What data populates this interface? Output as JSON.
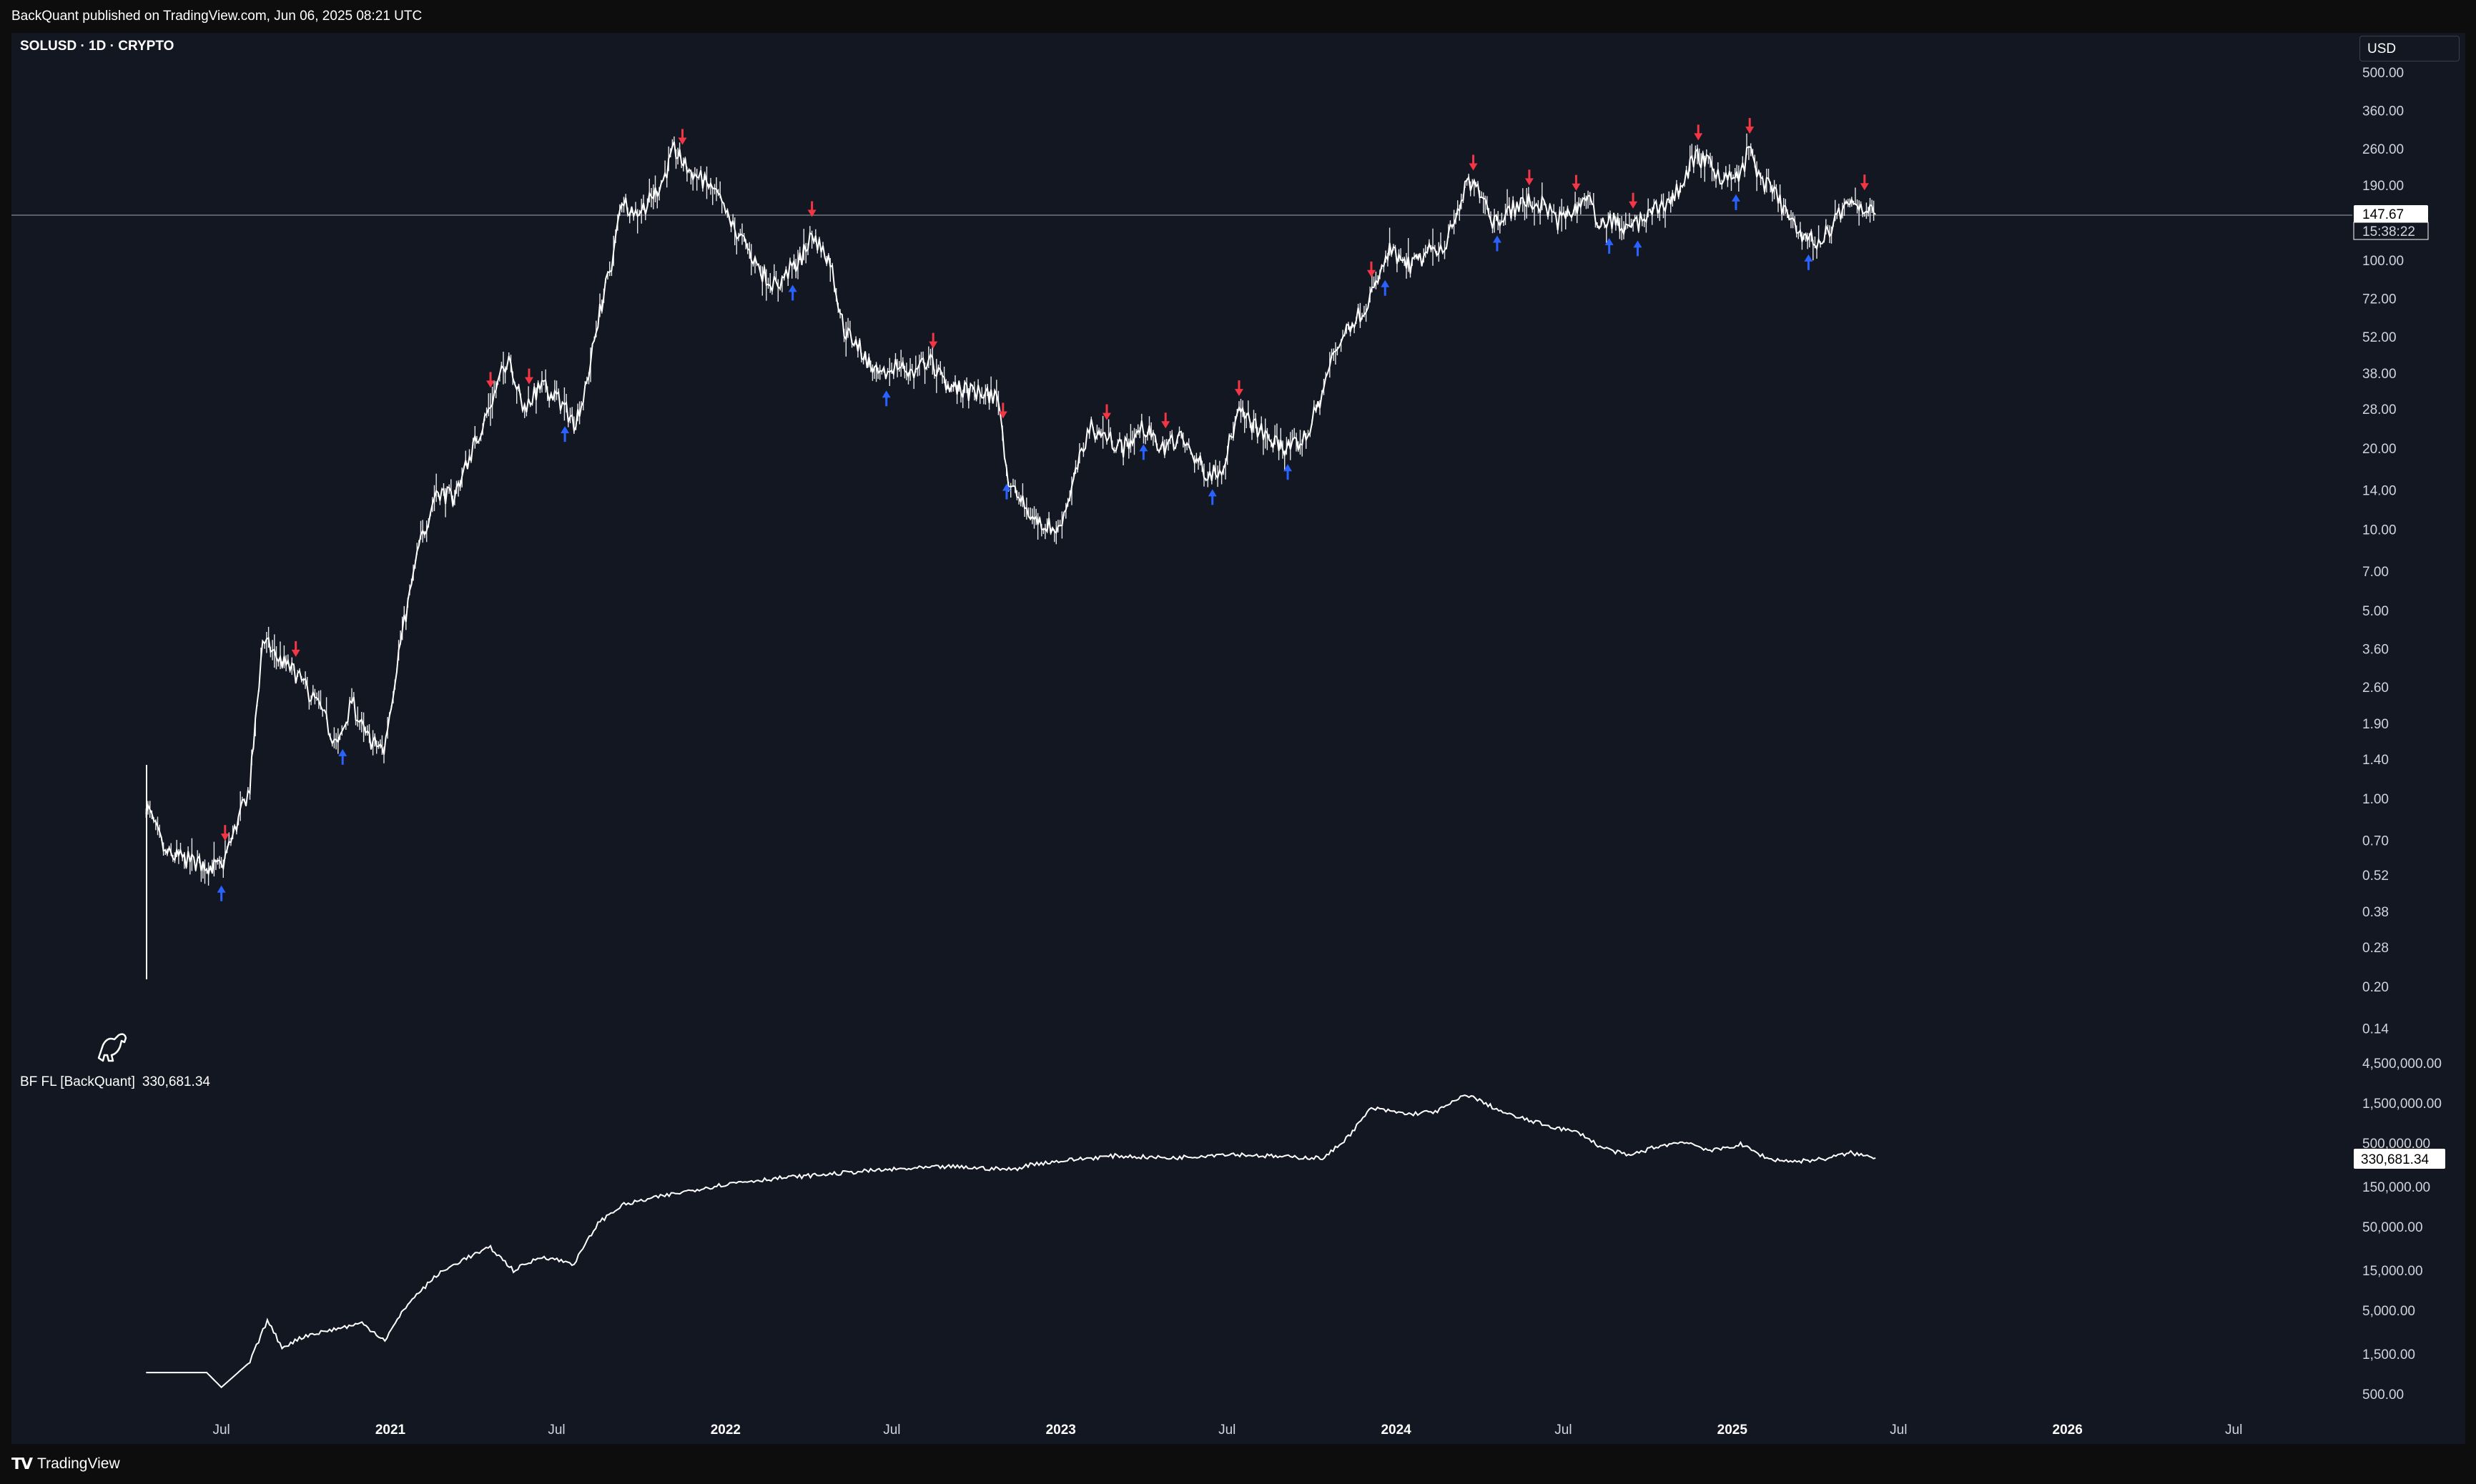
{
  "header": {
    "published": "BackQuant published on TradingView.com, Jun 06, 2025 08:21 UTC"
  },
  "symbol": {
    "title": "SOLUSD · 1D · CRYPTO"
  },
  "currency_button": {
    "label": "USD"
  },
  "indicator": {
    "name": "BF FL [BackQuant]",
    "value": "330,681.34"
  },
  "footer": {
    "brand": "TradingView"
  },
  "colors": {
    "background": "#131722",
    "price": "#ffffff",
    "buy": "#2962ff",
    "sell": "#f23645"
  },
  "chart_data": [
    {
      "type": "line",
      "title": "SOLUSD · 1D · CRYPTO",
      "scale": "log",
      "ylim": [
        0.12,
        500
      ],
      "y_ticks": [
        "500.00",
        "360.00",
        "260.00",
        "190.00",
        "140.00",
        "100.00",
        "72.00",
        "52.00",
        "38.00",
        "28.00",
        "20.00",
        "14.00",
        "10.00",
        "7.00",
        "5.00",
        "3.60",
        "2.60",
        "1.90",
        "1.40",
        "1.00",
        "0.70",
        "0.52",
        "0.38",
        "0.28",
        "0.20",
        "0.14"
      ],
      "x_ticks": [
        "Jul",
        "2021",
        "Jul",
        "2022",
        "Jul",
        "2023",
        "Jul",
        "2024",
        "Jul",
        "2025",
        "Jul",
        "2026",
        "Jul"
      ],
      "last_price": "147.67",
      "countdown": "15:38:22",
      "series": [
        {
          "x": [
            "2020-04-10",
            "2020-05-01",
            "2020-06-01",
            "2020-07-01",
            "2020-08-01",
            "2020-08-15",
            "2020-09-01",
            "2020-09-20",
            "2020-10-15",
            "2020-11-05",
            "2020-11-20",
            "2020-12-05",
            "2020-12-25",
            "2021-01-10",
            "2021-02-01",
            "2021-02-20",
            "2021-03-10",
            "2021-04-01",
            "2021-04-20",
            "2021-05-10",
            "2021-05-25",
            "2021-06-15",
            "2021-07-01",
            "2021-07-20",
            "2021-08-01",
            "2021-08-15",
            "2021-09-01",
            "2021-09-10",
            "2021-09-25",
            "2021-10-10",
            "2021-10-25",
            "2021-11-06",
            "2021-11-20",
            "2021-12-05",
            "2021-12-20",
            "2022-01-05",
            "2022-01-25",
            "2022-02-10",
            "2022-02-25",
            "2022-03-10",
            "2022-03-25",
            "2022-04-05",
            "2022-04-25",
            "2022-05-10",
            "2022-05-25",
            "2022-06-18",
            "2022-07-05",
            "2022-07-25",
            "2022-08-10",
            "2022-08-25",
            "2022-09-10",
            "2022-10-01",
            "2022-10-25",
            "2022-11-05",
            "2022-11-10",
            "2022-12-01",
            "2022-12-29",
            "2023-01-15",
            "2023-02-01",
            "2023-02-20",
            "2023-03-10",
            "2023-04-01",
            "2023-04-20",
            "2023-05-10",
            "2023-06-10",
            "2023-06-25",
            "2023-07-14",
            "2023-08-01",
            "2023-08-20",
            "2023-09-10",
            "2023-09-25",
            "2023-10-10",
            "2023-10-25",
            "2023-11-10",
            "2023-11-25",
            "2023-12-10",
            "2023-12-25",
            "2024-01-10",
            "2024-01-25",
            "2024-02-10",
            "2024-02-25",
            "2024-03-18",
            "2024-04-05",
            "2024-04-15",
            "2024-05-01",
            "2024-05-20",
            "2024-06-10",
            "2024-06-25",
            "2024-07-10",
            "2024-07-28",
            "2024-08-05",
            "2024-08-25",
            "2024-09-07",
            "2024-09-25",
            "2024-10-10",
            "2024-10-28",
            "2024-11-10",
            "2024-11-22",
            "2024-12-10",
            "2024-12-25",
            "2025-01-10",
            "2025-01-19",
            "2025-02-01",
            "2025-02-20",
            "2025-03-10",
            "2025-04-07",
            "2025-04-25",
            "2025-05-15",
            "2025-06-06"
          ],
          "y": [
            0.95,
            0.62,
            0.58,
            0.55,
            1.1,
            3.9,
            3.3,
            2.9,
            2.2,
            1.55,
            2.3,
            1.7,
            1.5,
            3.5,
            8.5,
            14,
            13,
            20,
            29,
            45,
            28,
            34,
            31,
            25,
            32,
            60,
            105,
            170,
            150,
            165,
            200,
            255,
            220,
            200,
            180,
            140,
            110,
            90,
            80,
            90,
            102,
            125,
            100,
            55,
            48,
            36,
            41,
            38,
            43,
            36,
            33,
            32,
            31,
            15,
            14,
            11,
            9.9,
            15,
            24,
            22,
            20,
            24,
            20,
            22,
            16,
            17,
            27,
            24,
            21,
            20,
            22,
            30,
            45,
            57,
            65,
            80,
            108,
            95,
            98,
            110,
            115,
            190,
            180,
            140,
            150,
            165,
            160,
            140,
            150,
            175,
            140,
            140,
            130,
            140,
            155,
            170,
            200,
            245,
            220,
            200,
            205,
            260,
            200,
            170,
            130,
            115,
            145,
            165,
            148
          ]
        }
      ]
    },
    {
      "type": "line",
      "title": "BF FL [BackQuant]",
      "scale": "log",
      "ylim": [
        300,
        4500000
      ],
      "y_ticks": [
        "4,500,000.00",
        "1,500,000.00",
        "500,000.00",
        "150,000.00",
        "50,000.00",
        "15,000.00",
        "5,000.00",
        "1,500.00",
        "500.00"
      ],
      "last_value": "330,681.34",
      "series": [
        {
          "name": "BF FL [BackQuant]",
          "x": [
            "2020-04-10",
            "2020-06-15",
            "2020-07-01",
            "2020-08-01",
            "2020-08-20",
            "2020-09-05",
            "2020-10-01",
            "2020-12-01",
            "2020-12-26",
            "2021-01-20",
            "2021-02-20",
            "2021-03-20",
            "2021-04-20",
            "2021-05-15",
            "2021-06-15",
            "2021-07-20",
            "2021-08-15",
            "2021-09-10",
            "2021-10-15",
            "2021-12-01",
            "2022-01-15",
            "2022-03-01",
            "2022-04-20",
            "2022-06-01",
            "2022-07-01",
            "2022-09-01",
            "2022-11-10",
            "2022-12-01",
            "2023-01-20",
            "2023-03-01",
            "2023-05-01",
            "2023-07-01",
            "2023-09-01",
            "2023-10-15",
            "2023-11-10",
            "2023-12-05",
            "2024-01-15",
            "2024-02-15",
            "2024-03-18",
            "2024-05-01",
            "2024-06-15",
            "2024-07-20",
            "2024-08-10",
            "2024-09-10",
            "2024-10-10",
            "2024-11-10",
            "2024-12-10",
            "2025-01-10",
            "2025-02-10",
            "2025-03-10",
            "2025-04-10",
            "2025-05-10",
            "2025-06-06"
          ],
          "y": [
            900,
            900,
            600,
            1200,
            3800,
            1800,
            2500,
            3500,
            2200,
            6000,
            13000,
            20000,
            28000,
            15000,
            22000,
            18000,
            55000,
            90000,
            110000,
            140000,
            170000,
            190000,
            210000,
            230000,
            240000,
            260000,
            240000,
            280000,
            320000,
            350000,
            330000,
            370000,
            340000,
            330000,
            600000,
            1300000,
            1100000,
            1200000,
            1900000,
            1100000,
            800000,
            650000,
            450000,
            350000,
            450000,
            520000,
            400000,
            480000,
            320000,
            300000,
            320000,
            380000,
            330681.34
          ]
        }
      ]
    }
  ]
}
